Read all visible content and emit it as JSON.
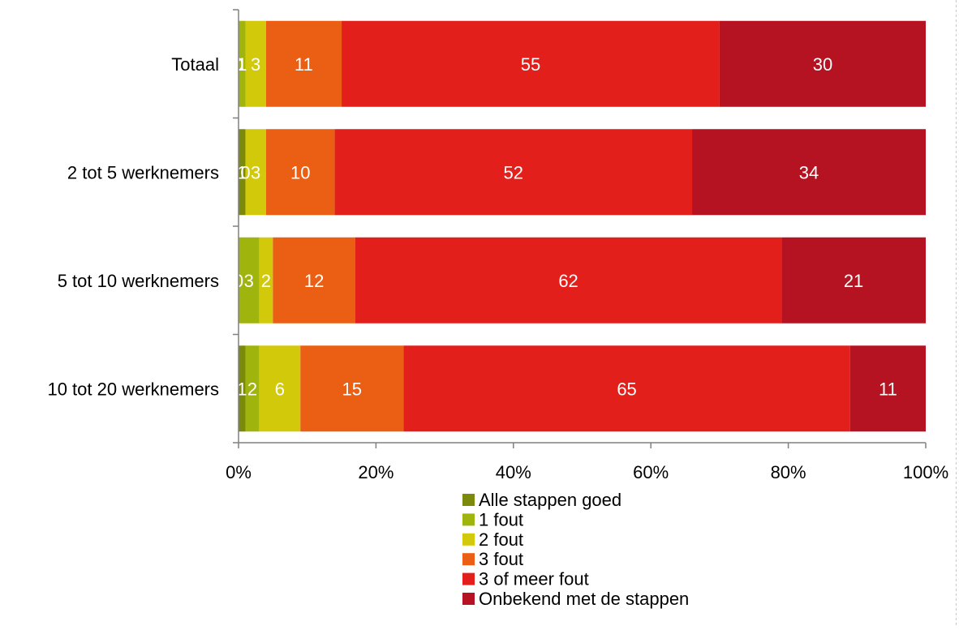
{
  "chart_data": {
    "type": "bar",
    "orientation": "horizontal",
    "stacked": "percent",
    "title": "",
    "xlabel": "",
    "ylabel": "",
    "xlim": [
      0,
      100
    ],
    "x_ticks": [
      "0%",
      "20%",
      "40%",
      "60%",
      "80%",
      "100%"
    ],
    "grid": false,
    "legend_position": "bottom",
    "categories": [
      "Totaal",
      "2 tot 5 werknemers",
      "5 tot 10 werknemers",
      "10 tot 20 werknemers"
    ],
    "series": [
      {
        "name": "Alle stappen goed",
        "color": "#7b8a0a",
        "values": [
          0,
          1,
          0,
          1
        ],
        "labels": [
          "0",
          "1",
          "0",
          "1"
        ]
      },
      {
        "name": "1 fout",
        "color": "#9fb50d",
        "values": [
          1,
          0,
          3,
          2
        ],
        "labels": [
          "1",
          "0",
          "3",
          "2"
        ]
      },
      {
        "name": "2 fout",
        "color": "#d2c90a",
        "values": [
          3,
          3,
          2,
          6
        ],
        "labels": [
          "3",
          "3",
          "2",
          "6"
        ]
      },
      {
        "name": "3 fout",
        "color": "#ea5f14",
        "values": [
          11,
          10,
          12,
          15
        ],
        "labels": [
          "11",
          "10",
          "12",
          "15"
        ]
      },
      {
        "name": "3 of meer fout",
        "color": "#e21f1b",
        "values": [
          55,
          52,
          62,
          65
        ],
        "labels": [
          "55",
          "52",
          "62",
          "65"
        ]
      },
      {
        "name": "Onbekend met de stappen",
        "color": "#b51322",
        "values": [
          30,
          34,
          21,
          11
        ],
        "labels": [
          "30",
          "34",
          "21",
          "11"
        ]
      }
    ]
  }
}
